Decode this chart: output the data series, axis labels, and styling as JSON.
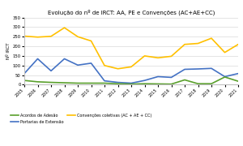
{
  "title": "Evolução do nº de IRCT: AA, PE e Convenções (AC+AE+CC)",
  "ylabel": "Nº IRCT",
  "years": [
    2005,
    2006,
    2007,
    2008,
    2009,
    2010,
    2011,
    2012,
    2013,
    2014,
    2015,
    2016,
    2017,
    2018,
    2019,
    2020,
    2021
  ],
  "acordos_adesao": [
    22,
    15,
    12,
    10,
    8,
    8,
    8,
    5,
    3,
    5,
    4,
    3,
    25,
    5,
    5,
    40,
    18
  ],
  "portarias_extensao": [
    58,
    135,
    72,
    135,
    102,
    112,
    20,
    12,
    8,
    22,
    42,
    38,
    80,
    82,
    85,
    42,
    58
  ],
  "convencoes_coletivas": [
    253,
    248,
    252,
    297,
    250,
    228,
    100,
    83,
    93,
    150,
    140,
    148,
    210,
    215,
    242,
    168,
    210
  ],
  "color_aa": "#5aa02c",
  "color_pe": "#4472c4",
  "color_cc": "#ffc000",
  "legend_aa": "Acordos de Adesão",
  "legend_pe": "Portarias de Extensão",
  "legend_cc": "Convenções coletivas (AC + AE + CC)",
  "ylim": [
    0,
    350
  ],
  "yticks": [
    0,
    50,
    100,
    150,
    200,
    250,
    300,
    350
  ],
  "bg_color": "#ffffff",
  "grid_color": "#d9d9d9"
}
